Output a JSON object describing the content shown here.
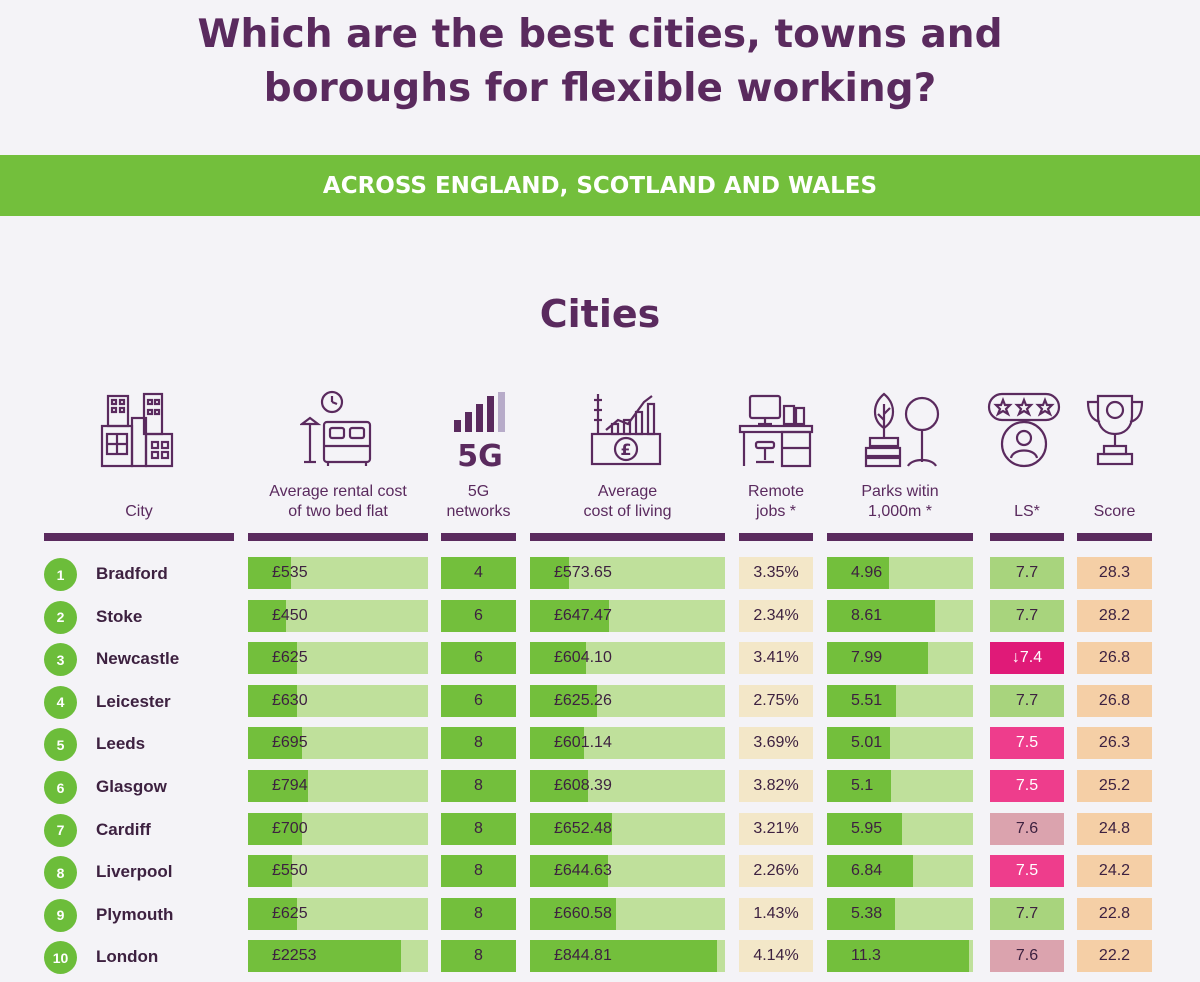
{
  "header": {
    "title_line1": "Which are the best cities, towns and",
    "title_line2": "boroughs for flexible working?",
    "banner": "ACROSS ENGLAND, SCOTLAND AND WALES",
    "section": "Cities"
  },
  "columns": {
    "city": "City",
    "rent_1": "Average rental cost",
    "rent_2": "of two bed flat",
    "g5_icon_text": "5G",
    "g5_1": "5G",
    "g5_2": "networks",
    "col_1": "Average",
    "col_2": "cost of living",
    "remote_1": "Remote",
    "remote_2": "jobs *",
    "parks_1": "Parks witin",
    "parks_2": "1,000m *",
    "ls": "LS*",
    "score": "Score"
  },
  "icons": [
    "city-buildings-icon",
    "bedroom-icon",
    "signal-5g-icon",
    "cost-of-living-icon",
    "desk-icon",
    "park-icon",
    "rating-person-icon",
    "trophy-icon"
  ],
  "colors": {
    "purple": "#5a2a5e",
    "green": "#73bf3c",
    "light_green": "#bfe09b",
    "pink": "#ee3d8c",
    "score": "#f5cfa6"
  },
  "rows": [
    {
      "rank": "1",
      "city": "Bradford",
      "rent": "£535",
      "rent_value": 535,
      "g5": "4",
      "col": "£573.65",
      "col_value": 573.65,
      "remote": "3.35%",
      "parks": "4.96",
      "parks_value": 4.96,
      "ls": "7.7",
      "ls_style": "green",
      "score": "28.3"
    },
    {
      "rank": "2",
      "city": "Stoke",
      "rent": "£450",
      "rent_value": 450,
      "g5": "6",
      "col": "£647.47",
      "col_value": 647.47,
      "remote": "2.34%",
      "parks": "8.61",
      "parks_value": 8.61,
      "ls": "7.7",
      "ls_style": "green",
      "score": "28.2"
    },
    {
      "rank": "3",
      "city": "Newcastle",
      "rent": "£625",
      "rent_value": 625,
      "g5": "6",
      "col": "£604.10",
      "col_value": 604.1,
      "remote": "3.41%",
      "parks": "7.99",
      "parks_value": 7.99,
      "ls": "↓7.4",
      "ls_style": "mag",
      "score": "26.8"
    },
    {
      "rank": "4",
      "city": "Leicester",
      "rent": "£630",
      "rent_value": 630,
      "g5": "6",
      "col": "£625.26",
      "col_value": 625.26,
      "remote": "2.75%",
      "parks": "5.51",
      "parks_value": 5.51,
      "ls": "7.7",
      "ls_style": "green",
      "score": "26.8"
    },
    {
      "rank": "5",
      "city": "Leeds",
      "rent": "£695",
      "rent_value": 695,
      "g5": "8",
      "col": "£601.14",
      "col_value": 601.14,
      "remote": "3.69%",
      "parks": "5.01",
      "parks_value": 5.01,
      "ls": "7.5",
      "ls_style": "pink",
      "score": "26.3"
    },
    {
      "rank": "6",
      "city": "Glasgow",
      "rent": "£794",
      "rent_value": 794,
      "g5": "8",
      "col": "£608.39",
      "col_value": 608.39,
      "remote": "3.82%",
      "parks": "5.1",
      "parks_value": 5.1,
      "ls": "7.5",
      "ls_style": "pink",
      "score": "25.2"
    },
    {
      "rank": "7",
      "city": "Cardiff",
      "rent": "£700",
      "rent_value": 700,
      "g5": "8",
      "col": "£652.48",
      "col_value": 652.48,
      "remote": "3.21%",
      "parks": "5.95",
      "parks_value": 5.95,
      "ls": "7.6",
      "ls_style": "rose",
      "score": "24.8"
    },
    {
      "rank": "8",
      "city": "Liverpool",
      "rent": "£550",
      "rent_value": 550,
      "g5": "8",
      "col": "£644.63",
      "col_value": 644.63,
      "remote": "2.26%",
      "parks": "6.84",
      "parks_value": 6.84,
      "ls": "7.5",
      "ls_style": "pink",
      "score": "24.2"
    },
    {
      "rank": "9",
      "city": "Plymouth",
      "rent": "£625",
      "rent_value": 625,
      "g5": "8",
      "col": "£660.58",
      "col_value": 660.58,
      "remote": "1.43%",
      "parks": "5.38",
      "parks_value": 5.38,
      "ls": "7.7",
      "ls_style": "green",
      "score": "22.8"
    },
    {
      "rank": "10",
      "city": "London",
      "rent": "£2253",
      "rent_value": 2253,
      "g5": "8",
      "col": "£844.81",
      "col_value": 844.81,
      "remote": "4.14%",
      "parks": "11.3",
      "parks_value": 11.3,
      "ls": "7.6",
      "ls_style": "rose",
      "score": "22.2"
    }
  ]
}
